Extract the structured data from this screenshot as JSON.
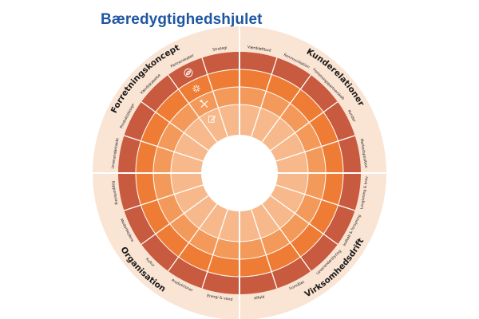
{
  "title": "Bæredygtighedshjulet",
  "colors": {
    "title": "#1f56a0",
    "outer_ring": "#fae4d4",
    "ring1": "#c75a3f",
    "ring2": "#ee7c34",
    "ring3": "#f39a5b",
    "ring4": "#f7b98b",
    "divider": "#ffffff",
    "text": "#1d1d1d"
  },
  "quadrants": [
    {
      "name": "Forretningskoncept"
    },
    {
      "name": "Kunderelationer"
    },
    {
      "name": "Virksomhedsdrift"
    },
    {
      "name": "Organisation"
    }
  ],
  "segments": [
    "Værdiløftbud",
    "Kommunikation",
    "Forretningspartnerskab",
    "Kunder",
    "Markedsposition",
    "Lovgivning & krav",
    "Indkøb & forsyning",
    "Leverandørstyring",
    "Formålet",
    "Affald",
    "Energi & vand",
    "Produktioner",
    "Kultur",
    "Medarbejdere",
    "Rapportering",
    "Leverandørkæde",
    "Produkt/design",
    "Værdiskabelse",
    "Partnerskaber",
    "Strategi"
  ],
  "icons": [
    "leaf-icon",
    "gear-icon",
    "tools-icon",
    "pencil-note-icon"
  ]
}
